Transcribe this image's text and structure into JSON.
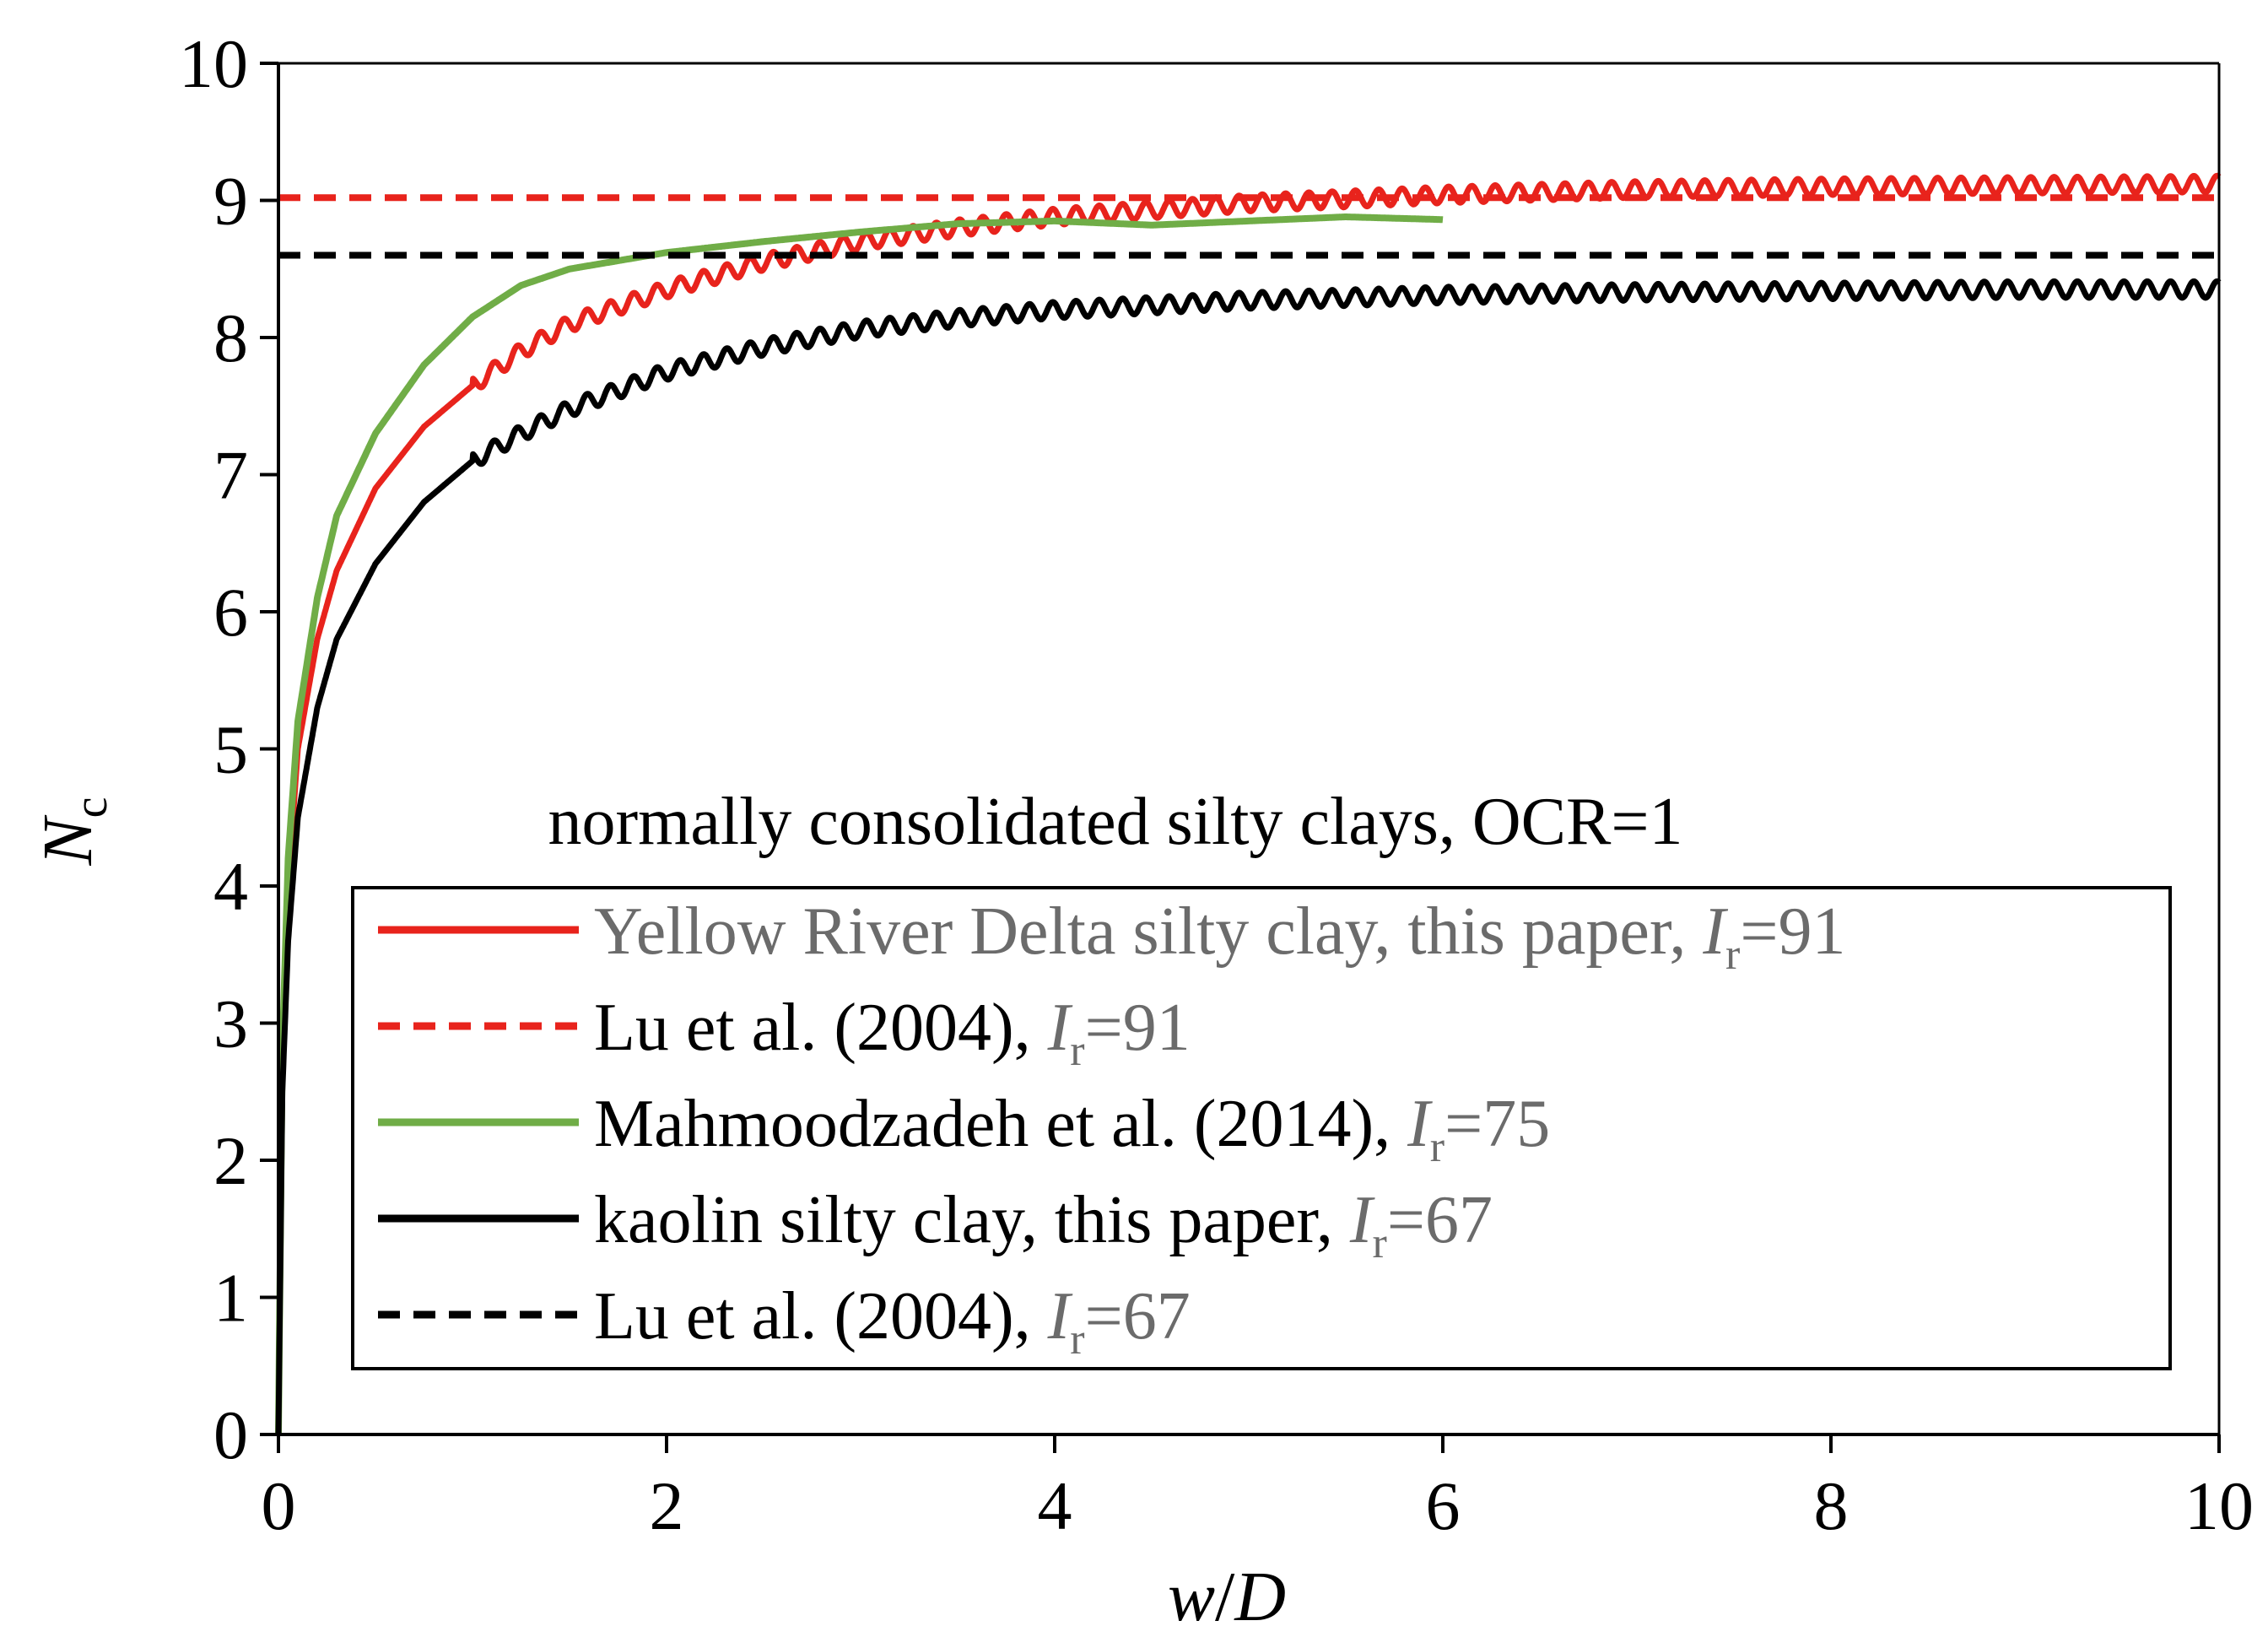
{
  "chart_data": {
    "type": "line",
    "title": "",
    "xlabel": "w/D",
    "xlabel_parts": {
      "italic_a": "w",
      "slash": "/",
      "italic_b": "D"
    },
    "ylabel": "Nc",
    "ylabel_parts": {
      "italic": "N",
      "subscript": "c"
    },
    "xlim": [
      0,
      10
    ],
    "ylim": [
      0,
      10
    ],
    "xticks": [
      0,
      2,
      4,
      6,
      8,
      10
    ],
    "yticks": [
      0,
      1,
      2,
      3,
      4,
      5,
      6,
      7,
      8,
      9,
      10
    ],
    "grid": false,
    "annotation": "normally consolidated silty clays, OCR=1",
    "legend_position": "bottom-center",
    "series": [
      {
        "name": "Yellow River Delta silty clay, this paper, Ir=91",
        "legend_parts": {
          "text": "Yellow River Delta silty clay, this paper, ",
          "italic": "I",
          "sub": "r",
          "eq": "=91"
        },
        "color": "#e8231c",
        "dash": "solid",
        "oscillating": true,
        "x": [
          0,
          0.02,
          0.05,
          0.1,
          0.2,
          0.3,
          0.5,
          0.75,
          1.0,
          1.25,
          1.5,
          2.0,
          2.5,
          3.0,
          3.5,
          4.0,
          5.0,
          6.0,
          7.0,
          8.0,
          9.0,
          10.0
        ],
        "y": [
          0,
          2.6,
          4.0,
          5.0,
          5.8,
          6.3,
          6.9,
          7.35,
          7.65,
          7.9,
          8.1,
          8.35,
          8.55,
          8.7,
          8.8,
          8.88,
          8.98,
          9.04,
          9.08,
          9.1,
          9.11,
          9.12
        ]
      },
      {
        "name": "Lu et al. (2004), Ir=91",
        "legend_parts": {
          "text": "Lu et al. (2004), ",
          "italic": "I",
          "sub": "r",
          "eq": "=91"
        },
        "color": "#e8231c",
        "dash": "dashed",
        "oscillating": false,
        "x": [
          0,
          10
        ],
        "y": [
          9.02,
          9.02
        ]
      },
      {
        "name": "Mahmoodzadeh et al. (2014), Ir=75",
        "legend_parts": {
          "text": "Mahmoodzadeh et al. (2014), ",
          "italic": "I",
          "sub": "r",
          "eq": "=75"
        },
        "color": "#70ad47",
        "dash": "solid",
        "oscillating": false,
        "x": [
          0,
          0.02,
          0.05,
          0.1,
          0.2,
          0.3,
          0.5,
          0.75,
          1.0,
          1.25,
          1.5,
          2.0,
          2.5,
          3.0,
          3.5,
          4.0,
          4.5,
          5.0,
          5.5,
          6.0
        ],
        "y": [
          0,
          2.8,
          4.2,
          5.2,
          6.1,
          6.7,
          7.3,
          7.8,
          8.15,
          8.38,
          8.5,
          8.62,
          8.7,
          8.77,
          8.83,
          8.85,
          8.82,
          8.85,
          8.88,
          8.86
        ]
      },
      {
        "name": "kaolin silty clay, this paper, Ir=67",
        "legend_parts": {
          "text": "kaolin silty clay, this paper, ",
          "italic": "I",
          "sub": "r",
          "eq": "=67"
        },
        "color": "#000000",
        "dash": "solid",
        "oscillating": true,
        "x": [
          0,
          0.02,
          0.05,
          0.1,
          0.2,
          0.3,
          0.5,
          0.75,
          1.0,
          1.25,
          1.5,
          2.0,
          2.5,
          3.0,
          3.5,
          4.0,
          5.0,
          6.0,
          7.0,
          8.0,
          9.0,
          10.0
        ],
        "y": [
          0,
          2.5,
          3.6,
          4.5,
          5.3,
          5.8,
          6.35,
          6.8,
          7.1,
          7.3,
          7.48,
          7.75,
          7.93,
          8.06,
          8.14,
          8.2,
          8.27,
          8.31,
          8.33,
          8.34,
          8.35,
          8.35
        ]
      },
      {
        "name": "Lu et al. (2004), Ir=67",
        "legend_parts": {
          "text": "Lu et al. (2004), ",
          "italic": "I",
          "sub": "r",
          "eq": "=67"
        },
        "color": "#000000",
        "dash": "dashed",
        "oscillating": false,
        "x": [
          0,
          10
        ],
        "y": [
          8.6,
          8.6
        ]
      }
    ]
  }
}
